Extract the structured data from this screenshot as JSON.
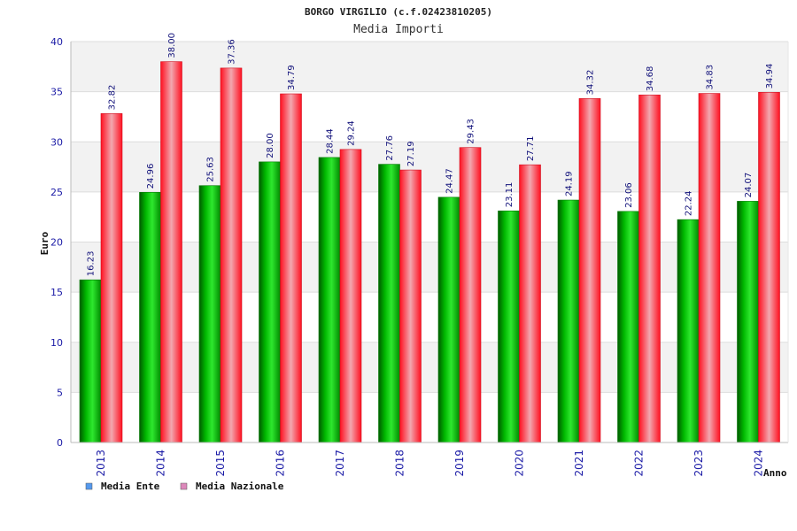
{
  "chart_data": {
    "type": "bar",
    "title": "BORGO VIRGILIO (c.f.02423810205)",
    "subtitle": "Media Importi",
    "xlabel": "Anno",
    "ylabel": "Euro",
    "ylim": [
      0,
      40
    ],
    "yticks": [
      "0",
      "5",
      "10",
      "15",
      "20",
      "25",
      "30",
      "35",
      "40"
    ],
    "grid": true,
    "legend_position": "bottom-left",
    "categories": [
      "2013",
      "2014",
      "2015",
      "2016",
      "2017",
      "2018",
      "2019",
      "2020",
      "2021",
      "2022",
      "2023",
      "2024"
    ],
    "series": [
      {
        "name": "Media Ente",
        "color": "#00a000",
        "legend_color": "#5599ee",
        "values": [
          16.23,
          24.96,
          25.63,
          28.0,
          28.44,
          27.76,
          24.47,
          23.11,
          24.19,
          23.06,
          22.24,
          24.07
        ],
        "labels": [
          "16.23",
          "24.96",
          "25.63",
          "28.00",
          "28.44",
          "27.76",
          "24.47",
          "23.11",
          "24.19",
          "23.06",
          "22.24",
          "24.07"
        ]
      },
      {
        "name": "Media Nazionale",
        "color": "#e8202a",
        "legend_color": "#dd88bb",
        "values": [
          32.82,
          38.0,
          37.36,
          34.79,
          29.24,
          27.19,
          29.43,
          27.71,
          34.32,
          34.68,
          34.83,
          34.94
        ],
        "labels": [
          "32.82",
          "38.00",
          "37.36",
          "34.79",
          "29.24",
          "27.19",
          "29.43",
          "27.71",
          "34.32",
          "34.68",
          "34.83",
          "34.94"
        ]
      }
    ]
  }
}
